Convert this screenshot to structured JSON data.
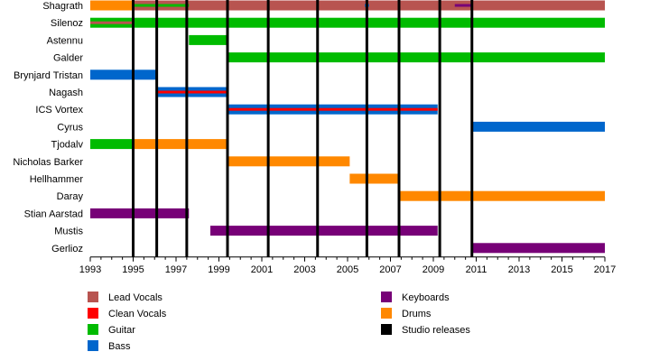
{
  "chart_data": {
    "type": "timeline",
    "x_range": [
      1993,
      2017
    ],
    "x_ticks": [
      "1993",
      "1995",
      "1997",
      "1999",
      "2001",
      "2003",
      "2005",
      "2007",
      "2009",
      "2011",
      "2013",
      "2015",
      "2017"
    ],
    "role_colors": {
      "Lead Vocals": "#b85450",
      "Clean Vocals": "#ff0000",
      "Guitar": "#00bb00",
      "Bass": "#0066cc",
      "Keyboards": "#770077",
      "Drums": "#ff8800",
      "Studio releases": "#000000"
    },
    "members": [
      {
        "name": "Shagrath",
        "bars": [
          {
            "role": "Drums",
            "start": 1993.0,
            "end": 1995.0
          },
          {
            "role": "Lead Vocals",
            "start": 1995.0,
            "end": 2017.0
          },
          {
            "role": "Guitar",
            "start": 1995.0,
            "end": 1997.6,
            "thin": true
          },
          {
            "role": "Bass",
            "start": 2005.8,
            "end": 2006.0,
            "thin": true
          },
          {
            "role": "Keyboards",
            "start": 2010.0,
            "end": 2010.8,
            "thin": true
          }
        ]
      },
      {
        "name": "Silenoz",
        "bars": [
          {
            "role": "Guitar",
            "start": 1993.0,
            "end": 2017.0
          },
          {
            "role": "Lead Vocals",
            "start": 1993.0,
            "end": 1995.0,
            "thin": true
          }
        ]
      },
      {
        "name": "Astennu",
        "bars": [
          {
            "role": "Guitar",
            "start": 1997.6,
            "end": 1999.4
          }
        ]
      },
      {
        "name": "Galder",
        "bars": [
          {
            "role": "Guitar",
            "start": 1999.4,
            "end": 2017.0
          }
        ]
      },
      {
        "name": "Brynjard Tristan",
        "bars": [
          {
            "role": "Bass",
            "start": 1993.0,
            "end": 1996.1
          }
        ]
      },
      {
        "name": "Nagash",
        "bars": [
          {
            "role": "Bass",
            "start": 1996.1,
            "end": 1999.4
          },
          {
            "role": "Clean Vocals",
            "start": 1996.1,
            "end": 1999.4,
            "thin": true
          }
        ]
      },
      {
        "name": "ICS Vortex",
        "bars": [
          {
            "role": "Bass",
            "start": 1999.4,
            "end": 2009.2
          },
          {
            "role": "Clean Vocals",
            "start": 1999.4,
            "end": 2009.2,
            "thin": true
          }
        ]
      },
      {
        "name": "Cyrus",
        "bars": [
          {
            "role": "Bass",
            "start": 2010.8,
            "end": 2017.0
          }
        ]
      },
      {
        "name": "Tjodalv",
        "bars": [
          {
            "role": "Guitar",
            "start": 1993.0,
            "end": 1995.0
          },
          {
            "role": "Drums",
            "start": 1995.0,
            "end": 1999.4
          }
        ]
      },
      {
        "name": "Nicholas Barker",
        "bars": [
          {
            "role": "Drums",
            "start": 1999.4,
            "end": 2005.1
          }
        ]
      },
      {
        "name": "Hellhammer",
        "bars": [
          {
            "role": "Drums",
            "start": 2005.1,
            "end": 2007.4
          }
        ]
      },
      {
        "name": "Daray",
        "bars": [
          {
            "role": "Drums",
            "start": 2007.4,
            "end": 2017.0
          }
        ]
      },
      {
        "name": "Stian Aarstad",
        "bars": [
          {
            "role": "Keyboards",
            "start": 1993.0,
            "end": 1997.6
          }
        ]
      },
      {
        "name": "Mustis",
        "bars": [
          {
            "role": "Keyboards",
            "start": 1998.6,
            "end": 2009.2
          }
        ]
      },
      {
        "name": "Gerlioz",
        "bars": [
          {
            "role": "Keyboards",
            "start": 2010.8,
            "end": 2017.0
          }
        ]
      }
    ],
    "studio_releases": [
      1995.0,
      1996.1,
      1997.5,
      1999.4,
      2001.3,
      2003.6,
      2005.9,
      2007.4,
      2009.3,
      2010.8
    ],
    "legend": {
      "columns": [
        [
          "Lead Vocals",
          "Clean Vocals",
          "Guitar",
          "Bass"
        ],
        [
          "Keyboards",
          "Drums",
          "Studio releases"
        ]
      ]
    },
    "grid": false
  }
}
